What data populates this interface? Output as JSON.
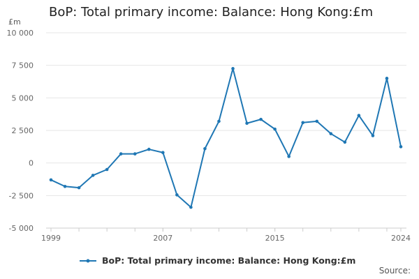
{
  "title": "BoP: Total primary income: Balance: Hong Kong:£m",
  "unit_label": "£m",
  "source_label": "Source:",
  "colors": {
    "series": "#1f77b4",
    "grid": "#e6e6e6",
    "axis": "#cccccc",
    "text": "#666666"
  },
  "chart_data": {
    "type": "line",
    "title": "BoP: Total primary income: Balance: Hong Kong:£m",
    "xlabel": "",
    "ylabel": "£m",
    "xlim": [
      1999,
      2024
    ],
    "ylim": [
      -5000,
      10000
    ],
    "yticks": [
      10000,
      7500,
      5000,
      2500,
      0,
      -2500,
      -5000
    ],
    "ytick_labels": [
      "10 000",
      "7 500",
      "5 000",
      "2 500",
      "0",
      "-2 500",
      "-5 000"
    ],
    "xtick_labels": [
      "1999",
      "2007",
      "2015",
      "2024"
    ],
    "grid": true,
    "legend_position": "bottom",
    "series": [
      {
        "name": "BoP: Total primary income: Balance: Hong Kong:£m",
        "x": [
          1999,
          2000,
          2001,
          2002,
          2003,
          2004,
          2005,
          2006,
          2007,
          2008,
          2009,
          2010,
          2011,
          2012,
          2013,
          2014,
          2015,
          2016,
          2017,
          2018,
          2019,
          2020,
          2021,
          2022,
          2023,
          2024
        ],
        "values": [
          -1300,
          -1800,
          -1900,
          -950,
          -500,
          700,
          700,
          1050,
          800,
          -2450,
          -3400,
          1100,
          3200,
          7250,
          3050,
          3350,
          2600,
          500,
          3100,
          3200,
          2250,
          1600,
          3650,
          2100,
          6500,
          1250
        ]
      }
    ]
  }
}
